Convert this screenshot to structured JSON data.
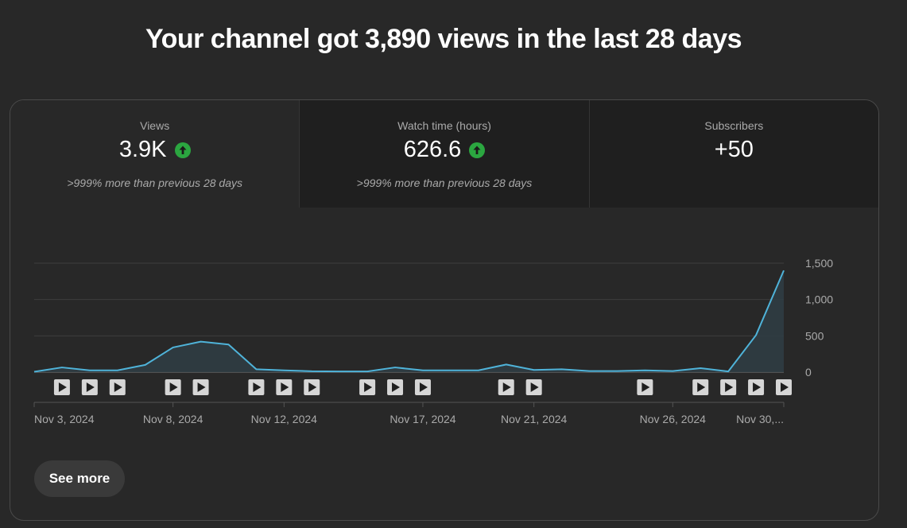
{
  "headline": "Your channel got 3,890 views in the last 28 days",
  "metrics": [
    {
      "label": "Views",
      "value": "3.9K",
      "trend": "up",
      "note": ">999% more than previous 28 days"
    },
    {
      "label": "Watch time (hours)",
      "value": "626.6",
      "trend": "up",
      "note": ">999% more than previous 28 days"
    },
    {
      "label": "Subscribers",
      "value": "+50",
      "trend": "",
      "note": ""
    }
  ],
  "see_more_label": "See more",
  "colors": {
    "line": "#4fb3d9",
    "accent_up": "#2ba640",
    "background": "#282828"
  },
  "chart_data": {
    "type": "area",
    "series_metric": "Views",
    "x": [
      "Nov 3, 2024",
      "Nov 4, 2024",
      "Nov 5, 2024",
      "Nov 6, 2024",
      "Nov 7, 2024",
      "Nov 8, 2024",
      "Nov 9, 2024",
      "Nov 10, 2024",
      "Nov 11, 2024",
      "Nov 12, 2024",
      "Nov 13, 2024",
      "Nov 14, 2024",
      "Nov 15, 2024",
      "Nov 16, 2024",
      "Nov 17, 2024",
      "Nov 18, 2024",
      "Nov 19, 2024",
      "Nov 20, 2024",
      "Nov 21, 2024",
      "Nov 22, 2024",
      "Nov 23, 2024",
      "Nov 24, 2024",
      "Nov 25, 2024",
      "Nov 26, 2024",
      "Nov 27, 2024",
      "Nov 28, 2024",
      "Nov 29, 2024",
      "Nov 30, 2024"
    ],
    "values": [
      5,
      65,
      25,
      25,
      100,
      340,
      420,
      380,
      40,
      25,
      12,
      10,
      10,
      65,
      25,
      25,
      25,
      105,
      30,
      40,
      15,
      15,
      25,
      15,
      55,
      10,
      510,
      1400
    ],
    "ylim": [
      0,
      1500
    ],
    "yticks": [
      0,
      500,
      1000,
      1500
    ],
    "ytick_labels": [
      "0",
      "500",
      "1,000",
      "1,500"
    ],
    "xtick_labels": [
      {
        "index": 0,
        "label": "Nov 3, 2024"
      },
      {
        "index": 5,
        "label": "Nov 8, 2024"
      },
      {
        "index": 9,
        "label": "Nov 12, 2024"
      },
      {
        "index": 14,
        "label": "Nov 17, 2024"
      },
      {
        "index": 18,
        "label": "Nov 21, 2024"
      },
      {
        "index": 23,
        "label": "Nov 26, 2024"
      },
      {
        "index": 27,
        "label": "Nov 30,..."
      }
    ],
    "video_markers": [
      1,
      2,
      3,
      5,
      6,
      8,
      9,
      10,
      12,
      13,
      14,
      17,
      18,
      22,
      24,
      25,
      26,
      27
    ],
    "grid": true
  }
}
